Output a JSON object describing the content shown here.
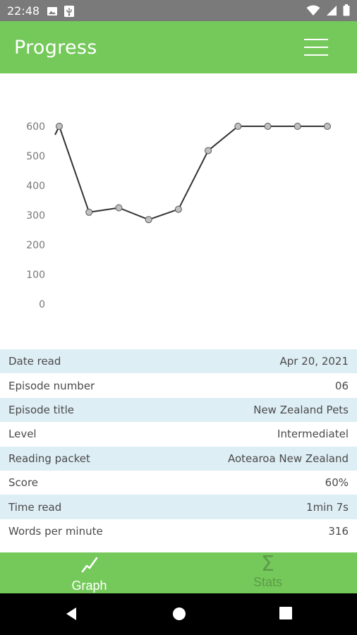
{
  "status_bar": {
    "time": "22:48",
    "left_icons": [
      "image-icon",
      "usb-icon"
    ],
    "right_icons": [
      "wifi-icon",
      "signal-icon",
      "battery-icon"
    ]
  },
  "app_bar": {
    "title": "Progress",
    "menu_icon": "hamburger-menu-icon"
  },
  "chart_data": {
    "type": "line",
    "title": "",
    "xlabel": "",
    "ylabel": "",
    "ylim": [
      0,
      600
    ],
    "yticks": [
      600,
      500,
      400,
      300,
      200,
      100,
      0
    ],
    "grid": false,
    "legend": "none",
    "line_color": "#333333",
    "point_color": "#c0c0c0",
    "series": [
      {
        "values": [
          600,
          310,
          325,
          285,
          320,
          518,
          600,
          600,
          600,
          600
        ]
      }
    ]
  },
  "details": {
    "rows": [
      {
        "label": "Date read",
        "value": "Apr 20, 2021"
      },
      {
        "label": "Episode number",
        "value": "06"
      },
      {
        "label": "Episode title",
        "value": "New Zealand Pets"
      },
      {
        "label": "Level",
        "value": "Intermediatel"
      },
      {
        "label": "Reading packet",
        "value": "Aotearoa New Zealand"
      },
      {
        "label": "Score",
        "value": "60%"
      },
      {
        "label": "Time read",
        "value": "1min 7s"
      },
      {
        "label": "Words per minute",
        "value": "316"
      }
    ]
  },
  "bottom_nav": {
    "graph_label": "Graph",
    "graph_icon": "line-graph-icon",
    "stats_label": "Stats",
    "stats_icon": "sigma-icon",
    "active": "graph"
  },
  "system_nav": {
    "icons": [
      "back-icon",
      "home-icon",
      "recents-icon"
    ]
  },
  "colors": {
    "primary": "#74c95a",
    "status_bar": "#7a7a7a",
    "row_alt": "#deeef5",
    "inactive_tab": "#5d9a4a"
  }
}
